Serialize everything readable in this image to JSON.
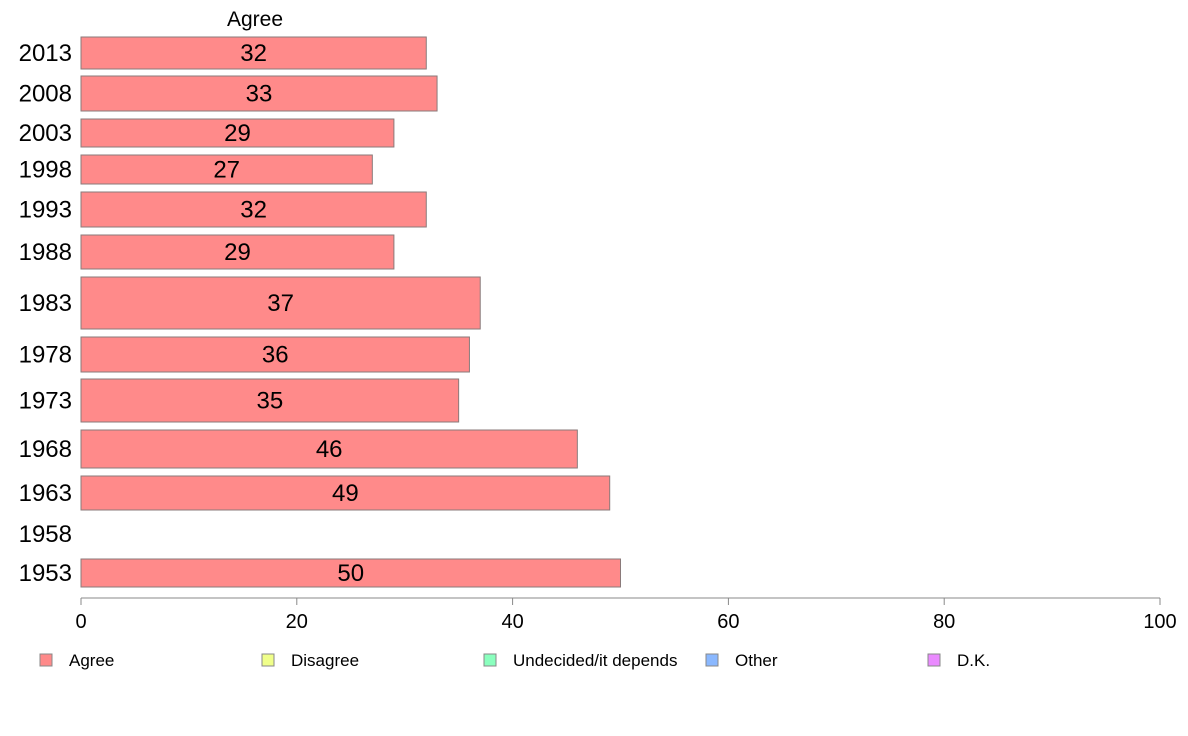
{
  "chart_data": {
    "type": "bar",
    "orientation": "horizontal",
    "series_header": "Agree",
    "categories": [
      "2013",
      "2008",
      "2003",
      "1998",
      "1993",
      "1988",
      "1983",
      "1978",
      "1973",
      "1968",
      "1963",
      "1958",
      "1953"
    ],
    "series": [
      {
        "name": "Agree",
        "values": [
          32,
          33,
          29,
          27,
          32,
          29,
          37,
          36,
          35,
          46,
          49,
          null,
          50
        ]
      }
    ],
    "value_labels": [
      "32",
      "33",
      "29",
      "27",
      "32",
      "29",
      "37",
      "36",
      "35",
      "46",
      "49",
      "",
      "50"
    ],
    "xlim": [
      0,
      100
    ],
    "xticks": [
      0,
      20,
      40,
      60,
      80,
      100
    ],
    "xtick_labels": [
      "0",
      "20",
      "40",
      "60",
      "80",
      "100"
    ],
    "grid": false,
    "legend_position": "bottom",
    "legend": [
      {
        "label": "Agree",
        "color": "#ff8a8a"
      },
      {
        "label": "Disagree",
        "color": "#f0ff8a"
      },
      {
        "label": "Undecided/it depends",
        "color": "#8affbe"
      },
      {
        "label": "Other",
        "color": "#8ab8ff"
      },
      {
        "label": "D.K.",
        "color": "#ea8aff"
      }
    ],
    "colors": {
      "bar_fill": "#ff8a8a",
      "bar_stroke": "#8a7a7a",
      "axis": "#888888"
    }
  }
}
